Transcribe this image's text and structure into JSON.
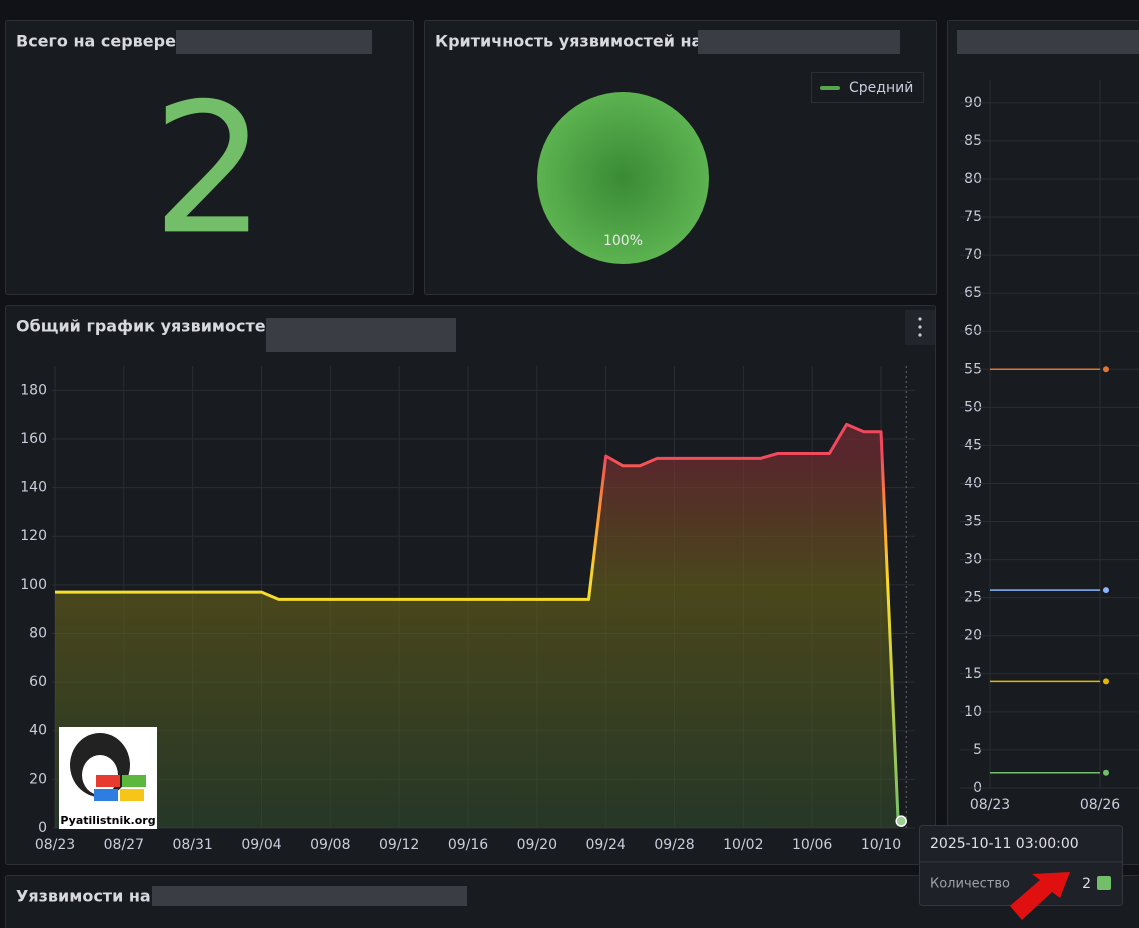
{
  "stat": {
    "title": "Всего на сервере",
    "value": 2
  },
  "chart_data": [
    {
      "type": "pie",
      "title": "Критичность уязвимостей на",
      "categories": [
        "Средний"
      ],
      "values": [
        100
      ],
      "value_labels": [
        "100%"
      ],
      "colors": [
        "#56a64b"
      ],
      "legend": "top-right"
    },
    {
      "type": "line",
      "title": "Общий график уязвимостей",
      "x": [
        "08/23",
        "08/24",
        "08/25",
        "08/26",
        "08/27",
        "08/28",
        "08/29",
        "08/30",
        "08/31",
        "09/01",
        "09/02",
        "09/03",
        "09/04",
        "09/05",
        "09/06",
        "09/07",
        "09/08",
        "09/09",
        "09/10",
        "09/11",
        "09/12",
        "09/13",
        "09/14",
        "09/15",
        "09/16",
        "09/17",
        "09/18",
        "09/19",
        "09/20",
        "09/21",
        "09/22",
        "09/23",
        "09/24",
        "09/25",
        "09/26",
        "09/27",
        "09/28",
        "09/29",
        "09/30",
        "10/01",
        "10/02",
        "10/03",
        "10/04",
        "10/05",
        "10/06",
        "10/07",
        "10/08",
        "10/09",
        "10/10",
        "10/11"
      ],
      "series": [
        {
          "name": "Количество",
          "values": [
            97,
            97,
            97,
            97,
            97,
            97,
            97,
            97,
            97,
            97,
            97,
            97,
            97,
            94,
            94,
            94,
            94,
            94,
            94,
            94,
            94,
            94,
            94,
            94,
            94,
            94,
            94,
            94,
            94,
            94,
            94,
            94,
            153,
            149,
            149,
            152,
            152,
            152,
            152,
            152,
            152,
            152,
            154,
            154,
            154,
            154,
            166,
            163,
            163,
            2
          ]
        }
      ],
      "ylim": [
        0,
        190
      ],
      "yticks": [
        0,
        20,
        40,
        60,
        80,
        100,
        120,
        140,
        160,
        180
      ],
      "xticks": [
        "08/23",
        "08/27",
        "08/31",
        "09/04",
        "09/08",
        "09/12",
        "09/16",
        "09/20",
        "09/24",
        "09/28",
        "10/02",
        "10/06",
        "10/10"
      ],
      "grid": true
    },
    {
      "type": "line",
      "x": [
        "08/23",
        "08/26"
      ],
      "ylim": [
        0,
        93
      ],
      "yticks": [
        0,
        5,
        10,
        15,
        20,
        25,
        30,
        35,
        40,
        45,
        50,
        55,
        60,
        65,
        70,
        75,
        80,
        85,
        90
      ],
      "xticks": [
        "08/23",
        "08/26"
      ],
      "grid": true,
      "series": [
        {
          "color": "#e0752d",
          "values": [
            55,
            55
          ]
        },
        {
          "color": "#8ab8ff",
          "values": [
            26,
            26
          ]
        },
        {
          "color": "#e6b800",
          "values": [
            14,
            14
          ]
        },
        {
          "color": "#73bf69",
          "values": [
            2,
            2
          ]
        }
      ]
    }
  ],
  "tooltip": {
    "time": "2025-10-11 03:00:00"
  },
  "bottom_panel": {
    "title": "Уязвимости на"
  },
  "watermark": "Pyatilistnik.org"
}
